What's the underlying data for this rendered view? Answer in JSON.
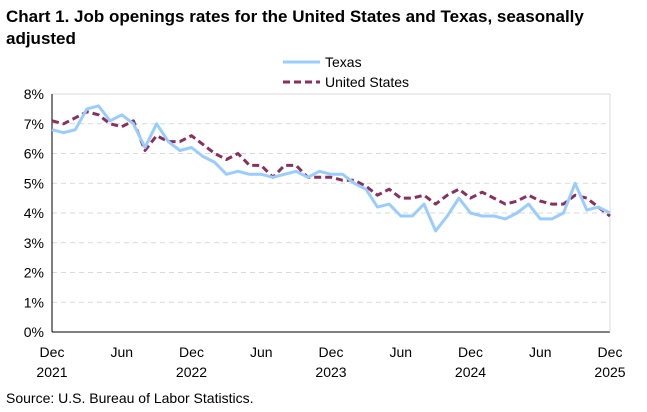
{
  "chart_data": {
    "type": "line",
    "title": "Chart 1. Job openings rates for the United States and Texas, seasonally adjusted",
    "source": "Source: U.S. Bureau of Labor Statistics.",
    "ylim": [
      0,
      8
    ],
    "yticks": [
      "0%",
      "1%",
      "2%",
      "3%",
      "4%",
      "5%",
      "6%",
      "7%",
      "8%"
    ],
    "xticks": [
      {
        "m": "Dec",
        "y": "2021"
      },
      {
        "m": "Jun",
        "y": ""
      },
      {
        "m": "Dec",
        "y": "2022"
      },
      {
        "m": "Jun",
        "y": ""
      },
      {
        "m": "Dec",
        "y": "2023"
      },
      {
        "m": "Jun",
        "y": ""
      },
      {
        "m": "Dec",
        "y": "2024"
      },
      {
        "m": "Jun",
        "y": ""
      },
      {
        "m": "Dec",
        "y": "2025"
      }
    ],
    "grid": true,
    "legend_placement": "top-center",
    "series": [
      {
        "name": "Texas",
        "color": "#99ccff",
        "dash": false,
        "values": [
          6.8,
          6.7,
          6.8,
          7.5,
          7.6,
          7.1,
          7.3,
          7.0,
          6.2,
          7.0,
          6.4,
          6.1,
          6.2,
          5.9,
          5.7,
          5.3,
          5.4,
          5.3,
          5.3,
          5.2,
          5.3,
          5.4,
          5.2,
          5.4,
          5.3,
          5.3,
          5.0,
          4.8,
          4.2,
          4.3,
          3.9,
          3.9,
          4.3,
          3.4,
          3.9,
          4.5,
          4.0,
          3.9,
          3.9,
          3.8,
          4.0,
          4.3,
          3.8,
          3.8,
          4.0,
          5.0,
          4.1,
          4.2,
          4.0
        ]
      },
      {
        "name": "United States",
        "color": "#8b2f5e",
        "dash": true,
        "values": [
          7.1,
          7.0,
          7.2,
          7.4,
          7.3,
          7.0,
          6.9,
          7.1,
          6.1,
          6.6,
          6.4,
          6.4,
          6.6,
          6.3,
          6.0,
          5.8,
          6.0,
          5.6,
          5.6,
          5.2,
          5.6,
          5.6,
          5.2,
          5.2,
          5.2,
          5.1,
          5.1,
          4.9,
          4.6,
          4.8,
          4.5,
          4.5,
          4.6,
          4.3,
          4.6,
          4.8,
          4.5,
          4.7,
          4.5,
          4.3,
          4.4,
          4.6,
          4.4,
          4.3,
          4.3,
          4.6,
          4.5,
          4.2,
          3.9
        ]
      }
    ]
  }
}
